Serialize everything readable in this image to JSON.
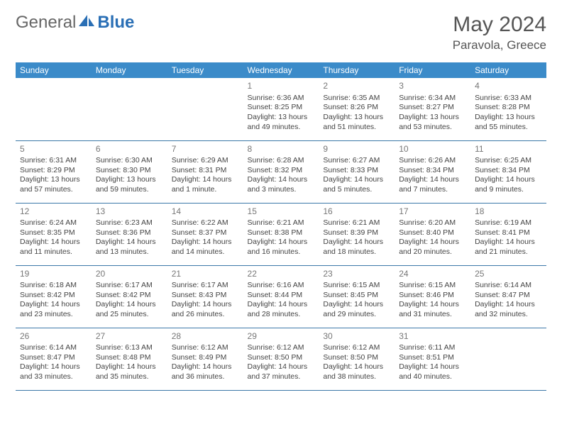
{
  "brand": {
    "part1": "General",
    "part2": "Blue"
  },
  "title": "May 2024",
  "location": "Paravola, Greece",
  "day_headers": [
    "Sunday",
    "Monday",
    "Tuesday",
    "Wednesday",
    "Thursday",
    "Friday",
    "Saturday"
  ],
  "colors": {
    "header_bg": "#3b8bc9",
    "header_text": "#ffffff",
    "row_border": "#3b78a8",
    "shaded_bg": "#eef1f3",
    "brand_blue": "#2a6fb5",
    "text": "#444444"
  },
  "weeks": [
    {
      "shaded": false,
      "days": [
        {
          "num": "",
          "sunrise": "",
          "sunset": "",
          "daylight": ""
        },
        {
          "num": "",
          "sunrise": "",
          "sunset": "",
          "daylight": ""
        },
        {
          "num": "",
          "sunrise": "",
          "sunset": "",
          "daylight": ""
        },
        {
          "num": "1",
          "sunrise": "Sunrise: 6:36 AM",
          "sunset": "Sunset: 8:25 PM",
          "daylight": "Daylight: 13 hours and 49 minutes."
        },
        {
          "num": "2",
          "sunrise": "Sunrise: 6:35 AM",
          "sunset": "Sunset: 8:26 PM",
          "daylight": "Daylight: 13 hours and 51 minutes."
        },
        {
          "num": "3",
          "sunrise": "Sunrise: 6:34 AM",
          "sunset": "Sunset: 8:27 PM",
          "daylight": "Daylight: 13 hours and 53 minutes."
        },
        {
          "num": "4",
          "sunrise": "Sunrise: 6:33 AM",
          "sunset": "Sunset: 8:28 PM",
          "daylight": "Daylight: 13 hours and 55 minutes."
        }
      ]
    },
    {
      "shaded": false,
      "days": [
        {
          "num": "5",
          "sunrise": "Sunrise: 6:31 AM",
          "sunset": "Sunset: 8:29 PM",
          "daylight": "Daylight: 13 hours and 57 minutes."
        },
        {
          "num": "6",
          "sunrise": "Sunrise: 6:30 AM",
          "sunset": "Sunset: 8:30 PM",
          "daylight": "Daylight: 13 hours and 59 minutes."
        },
        {
          "num": "7",
          "sunrise": "Sunrise: 6:29 AM",
          "sunset": "Sunset: 8:31 PM",
          "daylight": "Daylight: 14 hours and 1 minute."
        },
        {
          "num": "8",
          "sunrise": "Sunrise: 6:28 AM",
          "sunset": "Sunset: 8:32 PM",
          "daylight": "Daylight: 14 hours and 3 minutes."
        },
        {
          "num": "9",
          "sunrise": "Sunrise: 6:27 AM",
          "sunset": "Sunset: 8:33 PM",
          "daylight": "Daylight: 14 hours and 5 minutes."
        },
        {
          "num": "10",
          "sunrise": "Sunrise: 6:26 AM",
          "sunset": "Sunset: 8:34 PM",
          "daylight": "Daylight: 14 hours and 7 minutes."
        },
        {
          "num": "11",
          "sunrise": "Sunrise: 6:25 AM",
          "sunset": "Sunset: 8:34 PM",
          "daylight": "Daylight: 14 hours and 9 minutes."
        }
      ]
    },
    {
      "shaded": true,
      "days": [
        {
          "num": "12",
          "sunrise": "Sunrise: 6:24 AM",
          "sunset": "Sunset: 8:35 PM",
          "daylight": "Daylight: 14 hours and 11 minutes."
        },
        {
          "num": "13",
          "sunrise": "Sunrise: 6:23 AM",
          "sunset": "Sunset: 8:36 PM",
          "daylight": "Daylight: 14 hours and 13 minutes."
        },
        {
          "num": "14",
          "sunrise": "Sunrise: 6:22 AM",
          "sunset": "Sunset: 8:37 PM",
          "daylight": "Daylight: 14 hours and 14 minutes."
        },
        {
          "num": "15",
          "sunrise": "Sunrise: 6:21 AM",
          "sunset": "Sunset: 8:38 PM",
          "daylight": "Daylight: 14 hours and 16 minutes."
        },
        {
          "num": "16",
          "sunrise": "Sunrise: 6:21 AM",
          "sunset": "Sunset: 8:39 PM",
          "daylight": "Daylight: 14 hours and 18 minutes."
        },
        {
          "num": "17",
          "sunrise": "Sunrise: 6:20 AM",
          "sunset": "Sunset: 8:40 PM",
          "daylight": "Daylight: 14 hours and 20 minutes."
        },
        {
          "num": "18",
          "sunrise": "Sunrise: 6:19 AM",
          "sunset": "Sunset: 8:41 PM",
          "daylight": "Daylight: 14 hours and 21 minutes."
        }
      ]
    },
    {
      "shaded": false,
      "days": [
        {
          "num": "19",
          "sunrise": "Sunrise: 6:18 AM",
          "sunset": "Sunset: 8:42 PM",
          "daylight": "Daylight: 14 hours and 23 minutes."
        },
        {
          "num": "20",
          "sunrise": "Sunrise: 6:17 AM",
          "sunset": "Sunset: 8:42 PM",
          "daylight": "Daylight: 14 hours and 25 minutes."
        },
        {
          "num": "21",
          "sunrise": "Sunrise: 6:17 AM",
          "sunset": "Sunset: 8:43 PM",
          "daylight": "Daylight: 14 hours and 26 minutes."
        },
        {
          "num": "22",
          "sunrise": "Sunrise: 6:16 AM",
          "sunset": "Sunset: 8:44 PM",
          "daylight": "Daylight: 14 hours and 28 minutes."
        },
        {
          "num": "23",
          "sunrise": "Sunrise: 6:15 AM",
          "sunset": "Sunset: 8:45 PM",
          "daylight": "Daylight: 14 hours and 29 minutes."
        },
        {
          "num": "24",
          "sunrise": "Sunrise: 6:15 AM",
          "sunset": "Sunset: 8:46 PM",
          "daylight": "Daylight: 14 hours and 31 minutes."
        },
        {
          "num": "25",
          "sunrise": "Sunrise: 6:14 AM",
          "sunset": "Sunset: 8:47 PM",
          "daylight": "Daylight: 14 hours and 32 minutes."
        }
      ]
    },
    {
      "shaded": true,
      "days": [
        {
          "num": "26",
          "sunrise": "Sunrise: 6:14 AM",
          "sunset": "Sunset: 8:47 PM",
          "daylight": "Daylight: 14 hours and 33 minutes."
        },
        {
          "num": "27",
          "sunrise": "Sunrise: 6:13 AM",
          "sunset": "Sunset: 8:48 PM",
          "daylight": "Daylight: 14 hours and 35 minutes."
        },
        {
          "num": "28",
          "sunrise": "Sunrise: 6:12 AM",
          "sunset": "Sunset: 8:49 PM",
          "daylight": "Daylight: 14 hours and 36 minutes."
        },
        {
          "num": "29",
          "sunrise": "Sunrise: 6:12 AM",
          "sunset": "Sunset: 8:50 PM",
          "daylight": "Daylight: 14 hours and 37 minutes."
        },
        {
          "num": "30",
          "sunrise": "Sunrise: 6:12 AM",
          "sunset": "Sunset: 8:50 PM",
          "daylight": "Daylight: 14 hours and 38 minutes."
        },
        {
          "num": "31",
          "sunrise": "Sunrise: 6:11 AM",
          "sunset": "Sunset: 8:51 PM",
          "daylight": "Daylight: 14 hours and 40 minutes."
        },
        {
          "num": "",
          "sunrise": "",
          "sunset": "",
          "daylight": ""
        }
      ]
    }
  ]
}
